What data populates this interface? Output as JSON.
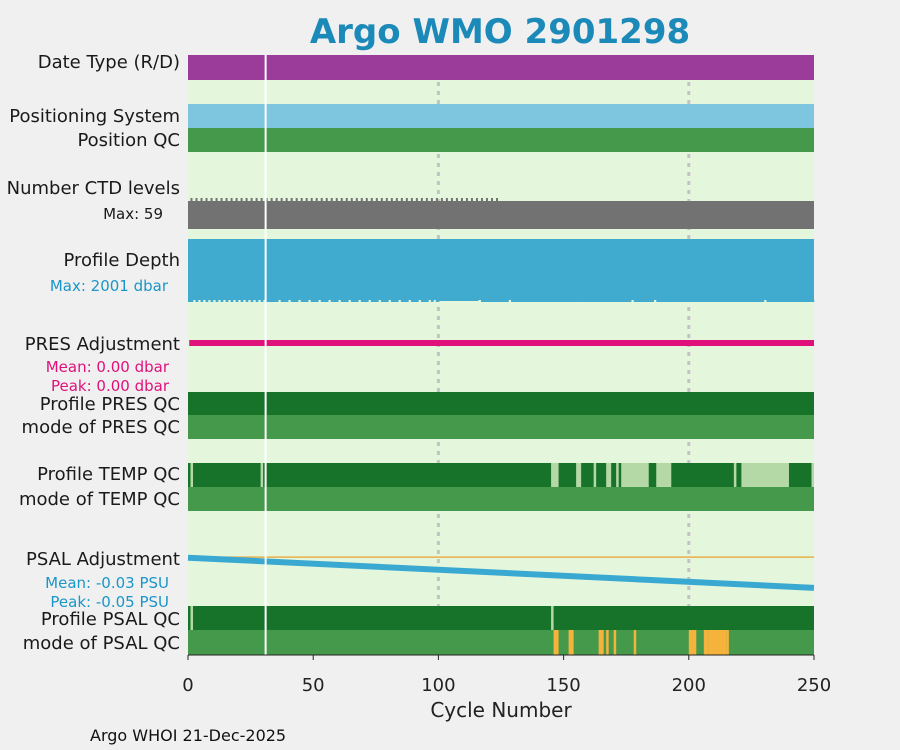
{
  "title": "Argo WMO 2901298",
  "footer": "Argo WHOI 21-Dec-2025",
  "chart_data": {
    "type": "timeline",
    "xlabel": "Cycle Number",
    "xlim": [
      0,
      250
    ],
    "xticks": [
      0,
      50,
      100,
      150,
      200,
      250
    ],
    "grid_x": [
      100,
      200
    ],
    "gap_cycles": [
      31
    ],
    "colors": {
      "background": "#e4f7dd",
      "date_type": "#9b3b9a",
      "positioning": "#7ec5e0",
      "qc_mode_green": "#45994a",
      "qc_dark_green": "#18732a",
      "qc_light": "#b5d8a7",
      "qc_yellow": "#f5b33c",
      "ctd": "#727272",
      "depth": "#41aacf",
      "pres": "#e0117a",
      "psal": "#3aa9d2",
      "psal_ref": "#e8b04a",
      "psal_text": "#1a96c8"
    },
    "rows": {
      "date_type": {
        "label": "Date Type (R/D)"
      },
      "positioning": {
        "label": "Positioning System"
      },
      "position_qc": {
        "label": "Position QC"
      },
      "ctd_levels": {
        "label": "Number CTD levels",
        "max_label": "Max: 59"
      },
      "profile_depth": {
        "label": "Profile Depth",
        "max_label": "Max: 2001 dbar",
        "shallow_cycles": [
          2,
          4,
          6,
          8,
          10,
          12,
          14,
          16,
          18,
          20,
          22,
          24,
          26,
          28,
          30,
          36,
          40,
          44,
          48,
          52,
          56,
          60,
          64,
          68,
          72,
          76,
          80,
          84,
          88,
          92,
          96,
          98,
          116,
          128,
          177,
          186,
          230
        ]
      },
      "pres_adjustment": {
        "label": "PRES Adjustment",
        "mean_label": "Mean: 0.00 dbar",
        "peak_label": "Peak: 0.00 dbar"
      },
      "profile_pres_qc": {
        "label": "Profile PRES QC"
      },
      "mode_pres_qc": {
        "label": "mode of PRES QC"
      },
      "profile_temp_qc": {
        "label": "Profile TEMP QC",
        "light_ranges": [
          [
            1,
            2
          ],
          [
            29,
            30
          ],
          [
            145,
            148
          ],
          [
            155,
            157
          ],
          [
            162,
            163
          ],
          [
            167,
            169
          ],
          [
            171,
            172
          ],
          [
            173,
            184
          ],
          [
            187,
            193
          ],
          [
            218,
            219
          ],
          [
            221,
            240
          ],
          [
            249,
            250
          ]
        ]
      },
      "mode_temp_qc": {
        "label": "mode of TEMP QC"
      },
      "psal_adjustment": {
        "label": "PSAL Adjustment",
        "mean_label": "Mean: -0.03 PSU",
        "peak_label": "Peak: -0.05 PSU",
        "start": -0.001,
        "end": -0.05,
        "ylim": [
          -0.06,
          0.005
        ]
      },
      "profile_psal_qc": {
        "label": "Profile PSAL QC",
        "light_ranges": [
          [
            1,
            2
          ],
          [
            145,
            146
          ]
        ]
      },
      "mode_psal_qc": {
        "label": "mode of PSAL QC",
        "yellow_ranges": [
          [
            146,
            148
          ],
          [
            152,
            154
          ],
          [
            164,
            166
          ],
          [
            167,
            168
          ],
          [
            170,
            171
          ],
          [
            178,
            179
          ],
          [
            200,
            203
          ],
          [
            206,
            208
          ],
          [
            208,
            215
          ],
          [
            215,
            216
          ]
        ]
      }
    }
  }
}
